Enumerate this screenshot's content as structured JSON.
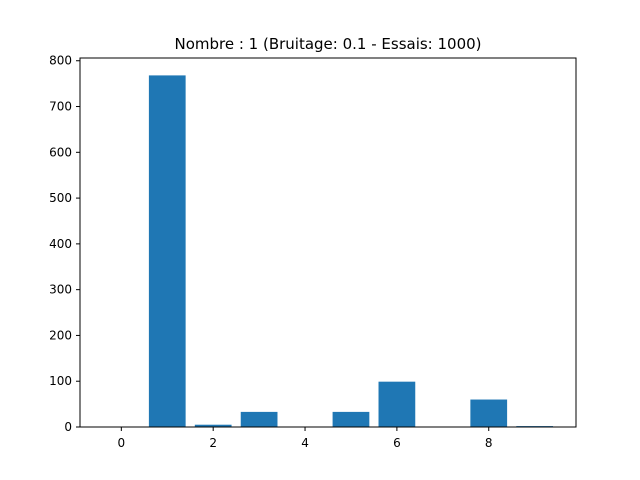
{
  "chart_data": {
    "type": "bar",
    "title": "Nombre : 1 (Bruitage: 0.1 - Essais: 1000)",
    "xlabel": "",
    "ylabel": "",
    "x": [
      0,
      1,
      2,
      3,
      4,
      5,
      6,
      7,
      8,
      9
    ],
    "values": [
      0,
      768,
      5,
      33,
      0,
      33,
      99,
      0,
      60,
      2
    ],
    "xlim": [
      -0.9,
      9.9
    ],
    "ylim": [
      0,
      806
    ],
    "xticks": [
      0,
      2,
      4,
      6,
      8
    ],
    "yticks": [
      0,
      100,
      200,
      300,
      400,
      500,
      600,
      700,
      800
    ],
    "bar_width": 0.8,
    "bar_color": "#1f77b4",
    "grid": false
  }
}
